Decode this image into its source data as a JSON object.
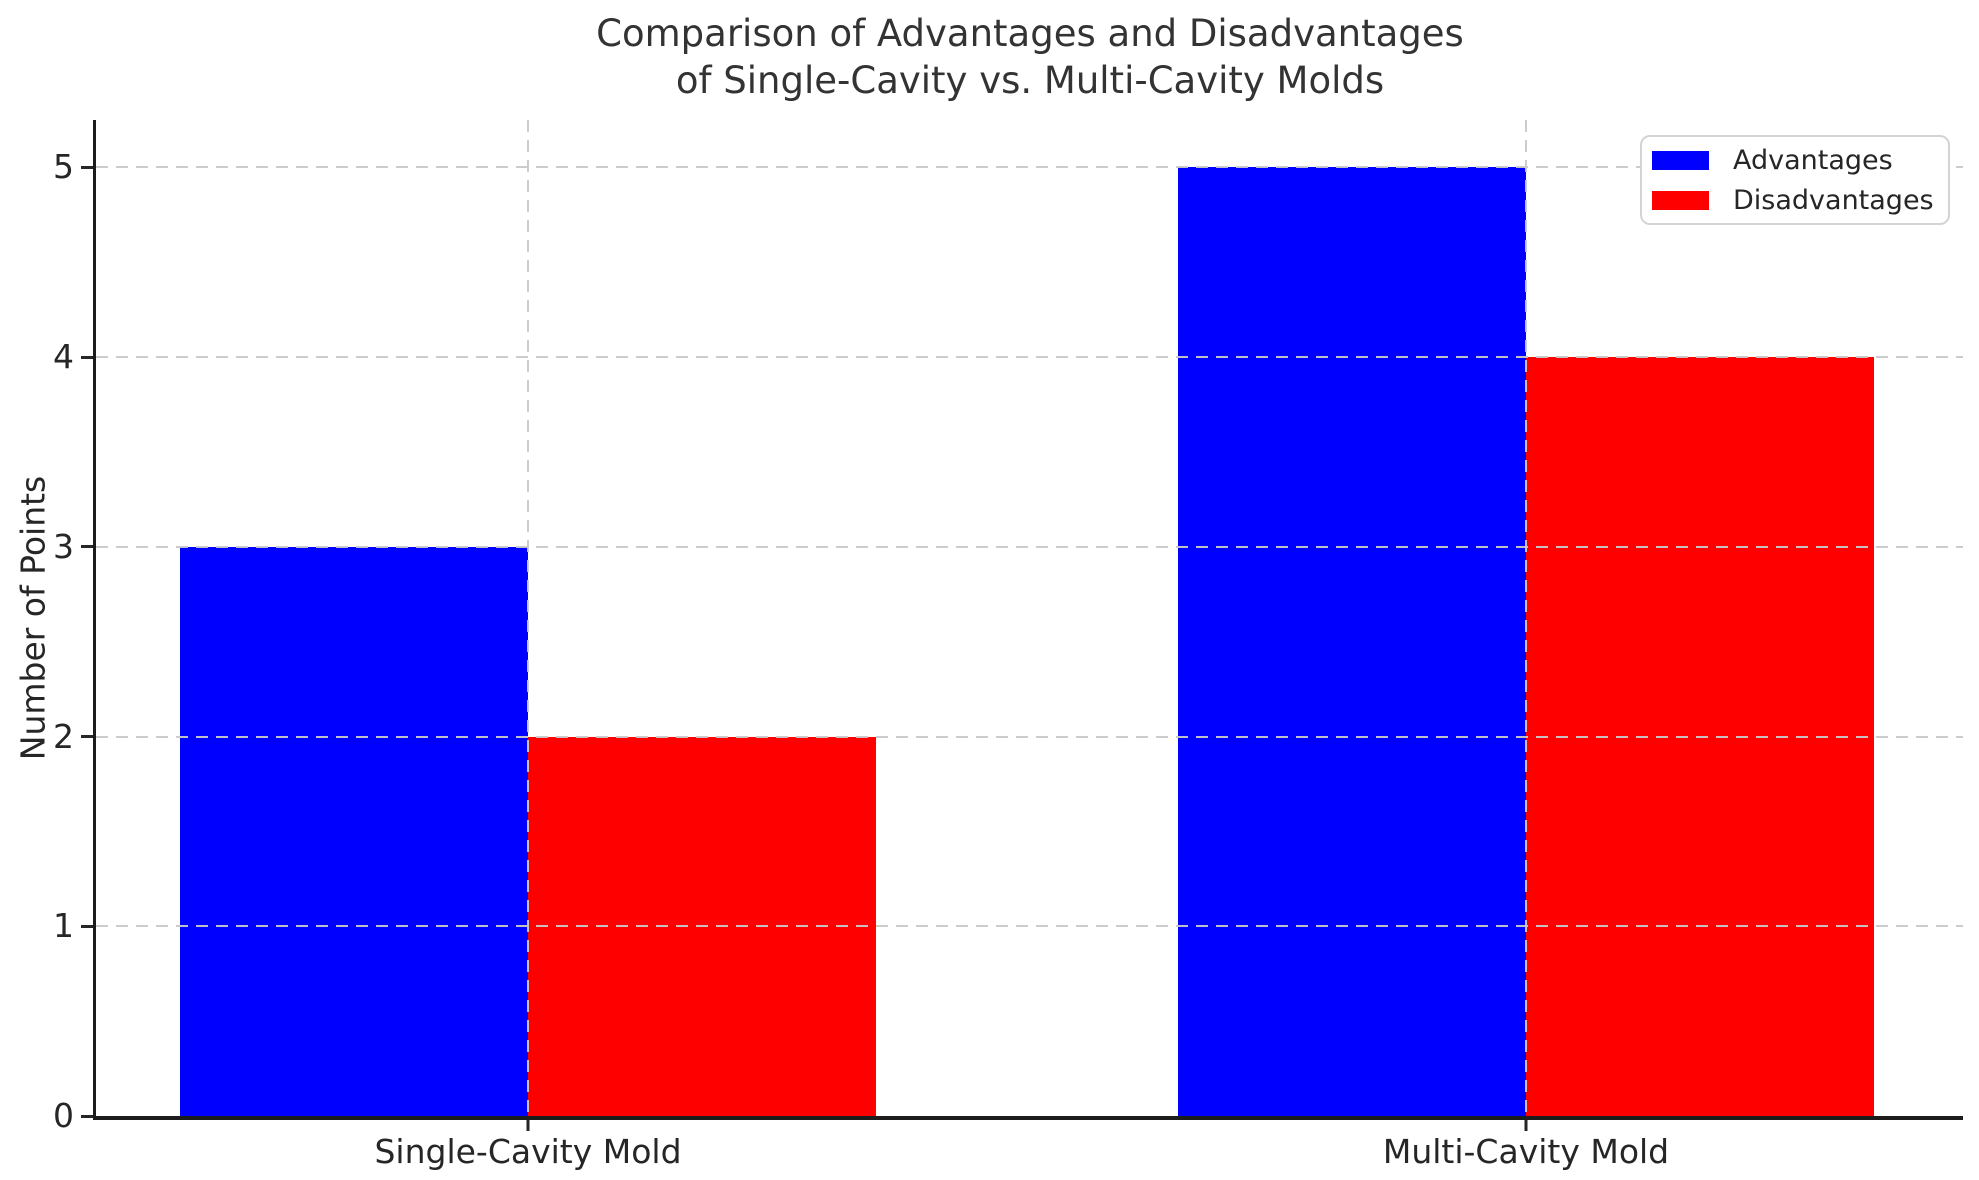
{
  "chart_data": {
    "type": "bar",
    "title": "Comparison of Advantages and Disadvantages\nof Single-Cavity vs. Multi-Cavity Molds",
    "title_lines": [
      "Comparison of Advantages and Disadvantages",
      "of Single-Cavity vs. Multi-Cavity Molds"
    ],
    "categories": [
      "Single-Cavity Mold",
      "Multi-Cavity Mold"
    ],
    "series": [
      {
        "name": "Advantages",
        "color": "#0000ff",
        "values": [
          3,
          5
        ]
      },
      {
        "name": "Disadvantages",
        "color": "#ff0000",
        "values": [
          2,
          4
        ]
      }
    ],
    "xlabel": "",
    "ylabel": "Number of Points",
    "ylim": [
      0,
      5.25
    ],
    "yticks": [
      0,
      1,
      2,
      3,
      4,
      5
    ],
    "grid": true,
    "grid_style": "dashed",
    "grid_color": "#c9c9c9",
    "legend_position": "upper right",
    "colors": {
      "advantages": "#0000ff",
      "disadvantages": "#ff0000",
      "axis": "#1c1c1c",
      "text": "#333333"
    }
  }
}
